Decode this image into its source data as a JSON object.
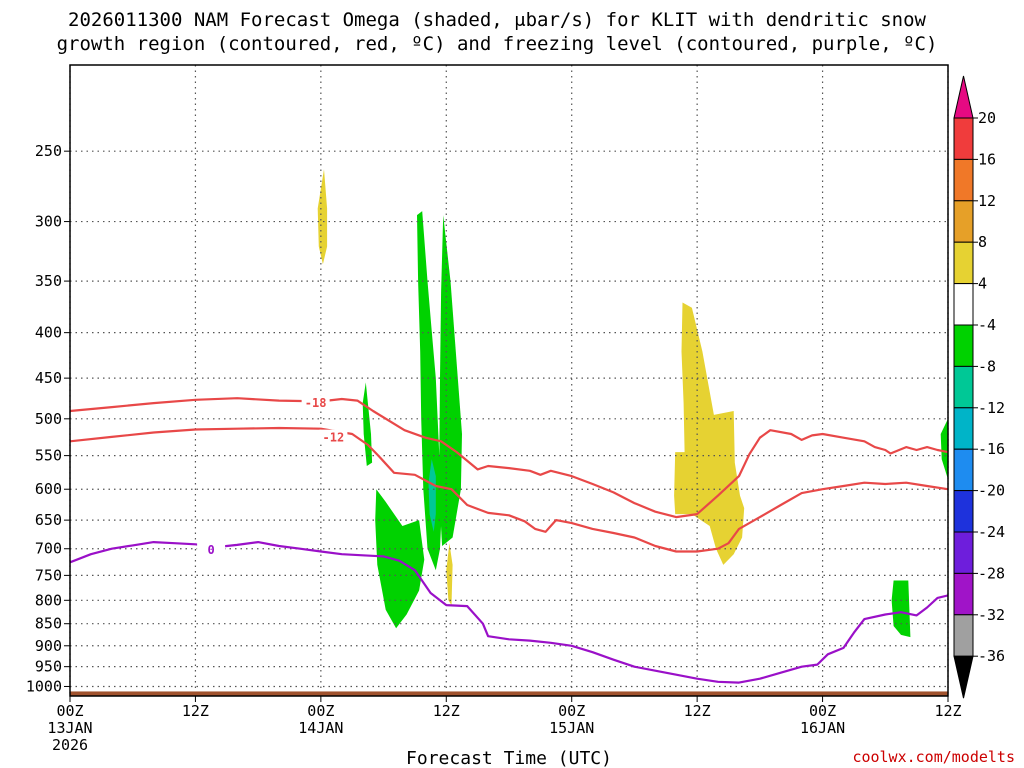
{
  "title": {
    "line1": "2026011300 NAM Forecast Omega (shaded, μbar/s) for KLIT with dendritic snow",
    "line2": "growth region (contoured, red, ºC) and freezing level (contoured, purple, ºC)"
  },
  "credit": "coolwx.com/modelts",
  "chart_data": {
    "type": "contour",
    "title": "2026011300 NAM Forecast Omega (shaded, μbar/s) for KLIT with dendritic snow growth region (contoured, red, ºC) and freezing level (contoured, purple, ºC)",
    "xlabel": "Forecast Time (UTC)",
    "ylabel": "",
    "x_unit": "forecast hour",
    "xlim": [
      0,
      84
    ],
    "ylim": [
      1025,
      200
    ],
    "y_scale": "log-pressure (reversed)",
    "grid": true,
    "x_ticks": [
      {
        "hour": 0,
        "lines": [
          "00Z",
          "13JAN",
          "2026"
        ]
      },
      {
        "hour": 12,
        "lines": [
          "12Z"
        ]
      },
      {
        "hour": 24,
        "lines": [
          "00Z",
          "14JAN"
        ]
      },
      {
        "hour": 36,
        "lines": [
          "12Z"
        ]
      },
      {
        "hour": 48,
        "lines": [
          "00Z",
          "15JAN"
        ]
      },
      {
        "hour": 60,
        "lines": [
          "12Z"
        ]
      },
      {
        "hour": 72,
        "lines": [
          "00Z",
          "16JAN"
        ]
      },
      {
        "hour": 84,
        "lines": [
          "12Z"
        ]
      }
    ],
    "y_ticks": [
      250,
      300,
      350,
      400,
      450,
      500,
      550,
      600,
      650,
      700,
      750,
      800,
      850,
      900,
      950,
      1000
    ],
    "colorbar": {
      "labels": [
        "20",
        "16",
        "12",
        "8",
        "4",
        "-4",
        "-8",
        "-12",
        "-16",
        "-20",
        "-24",
        "-28",
        "-32",
        "-36"
      ],
      "colors": [
        "#e60a82",
        "#f03c3c",
        "#f07828",
        "#e6a028",
        "#e6d232",
        "#ffffff",
        "#00d200",
        "#00c896",
        "#00b4c8",
        "#1e8cf0",
        "#1e32dc",
        "#6e1edc",
        "#a014c8",
        "#a0a0a0",
        "#000000"
      ]
    },
    "surface_color": "#a0522d",
    "surface_top_pressure": 1013,
    "omega_regions": [
      {
        "fill": "#e6d232",
        "points": [
          [
            24.3,
            262
          ],
          [
            24.6,
            290
          ],
          [
            24.6,
            320
          ],
          [
            24.2,
            335
          ],
          [
            23.8,
            320
          ],
          [
            23.7,
            290
          ]
        ]
      },
      {
        "fill": "#00d200",
        "points": [
          [
            33.7,
            292
          ],
          [
            34.2,
            350
          ],
          [
            34.6,
            398
          ],
          [
            35,
            450
          ],
          [
            35.3,
            540
          ],
          [
            35.6,
            620
          ],
          [
            35.4,
            700
          ],
          [
            35,
            740
          ],
          [
            34.2,
            700
          ],
          [
            33.8,
            600
          ],
          [
            33.6,
            500
          ],
          [
            33.5,
            420
          ],
          [
            33.3,
            350
          ],
          [
            33.2,
            295
          ]
        ]
      },
      {
        "fill": "#00d200",
        "points": [
          [
            35.7,
            295
          ],
          [
            36.4,
            350
          ],
          [
            37.1,
            450
          ],
          [
            37.5,
            520
          ],
          [
            37.4,
            600
          ],
          [
            36.6,
            680
          ],
          [
            35.6,
            695
          ],
          [
            35.3,
            600
          ],
          [
            35.4,
            450
          ],
          [
            35.5,
            360
          ]
        ]
      },
      {
        "fill": "#00d200",
        "points": [
          [
            28.3,
            455
          ],
          [
            28.8,
            520
          ],
          [
            28.9,
            560
          ],
          [
            28.4,
            565
          ],
          [
            28.1,
            520
          ],
          [
            28.0,
            480
          ]
        ]
      },
      {
        "fill": "#00d200",
        "points": [
          [
            29.3,
            600
          ],
          [
            30.2,
            620
          ],
          [
            31.8,
            660
          ],
          [
            33.4,
            650
          ],
          [
            33.9,
            720
          ],
          [
            33.4,
            780
          ],
          [
            32.2,
            830
          ],
          [
            31.2,
            860
          ],
          [
            30.2,
            820
          ],
          [
            29.4,
            730
          ],
          [
            29.2,
            650
          ]
        ]
      },
      {
        "fill": "#00c896",
        "points": [
          [
            34.6,
            555
          ],
          [
            35.0,
            580
          ],
          [
            35.0,
            640
          ],
          [
            34.8,
            670
          ],
          [
            34.4,
            640
          ],
          [
            34.3,
            590
          ]
        ]
      },
      {
        "fill": "#e6d232",
        "points": [
          [
            36.3,
            690
          ],
          [
            36.6,
            730
          ],
          [
            36.5,
            810
          ],
          [
            36.2,
            800
          ],
          [
            36.0,
            740
          ]
        ]
      },
      {
        "fill": "#e6d232",
        "points": [
          [
            58.6,
            370
          ],
          [
            59.5,
            375
          ],
          [
            60.5,
            420
          ],
          [
            61.6,
            495
          ],
          [
            63.5,
            490
          ],
          [
            63.6,
            560
          ],
          [
            64.1,
            610
          ],
          [
            64.5,
            630
          ],
          [
            64.3,
            680
          ],
          [
            63.5,
            710
          ],
          [
            62.5,
            730
          ],
          [
            61.8,
            700
          ],
          [
            61.2,
            660
          ],
          [
            59.5,
            640
          ],
          [
            57.9,
            640
          ],
          [
            57.8,
            610
          ],
          [
            57.9,
            545
          ],
          [
            58.8,
            545
          ],
          [
            58.7,
            480
          ],
          [
            58.5,
            420
          ]
        ]
      },
      {
        "fill": "#00d200",
        "points": [
          [
            84,
            500
          ],
          [
            84,
            585
          ],
          [
            83.4,
            555
          ],
          [
            83.3,
            520
          ]
        ]
      },
      {
        "fill": "#00d200",
        "points": [
          [
            78.8,
            760
          ],
          [
            80.2,
            760
          ],
          [
            80.4,
            880
          ],
          [
            79.5,
            875
          ],
          [
            78.8,
            855
          ],
          [
            78.6,
            800
          ]
        ]
      }
    ],
    "contours": [
      {
        "label": "-18",
        "color": "#e84848",
        "label_at": [
          23.5,
          480
        ],
        "points": [
          [
            0,
            490
          ],
          [
            4,
            485
          ],
          [
            8,
            480
          ],
          [
            12,
            476
          ],
          [
            16,
            474
          ],
          [
            20,
            477
          ],
          [
            24,
            478
          ],
          [
            26,
            475
          ],
          [
            27.5,
            477
          ],
          [
            29,
            490
          ],
          [
            32,
            515
          ],
          [
            34,
            525
          ],
          [
            35.5,
            530
          ],
          [
            37,
            545
          ],
          [
            39,
            570
          ],
          [
            40,
            565
          ],
          [
            42,
            568
          ],
          [
            44,
            572
          ],
          [
            45,
            578
          ],
          [
            46,
            572
          ],
          [
            48,
            580
          ],
          [
            50,
            592
          ],
          [
            52,
            605
          ],
          [
            54,
            622
          ],
          [
            56,
            636
          ],
          [
            58,
            645
          ],
          [
            60,
            640
          ],
          [
            62,
            610
          ],
          [
            64,
            580
          ],
          [
            65,
            548
          ],
          [
            66,
            525
          ],
          [
            67,
            515
          ],
          [
            69,
            520
          ],
          [
            70,
            528
          ],
          [
            71,
            522
          ],
          [
            72,
            520
          ],
          [
            74,
            525
          ],
          [
            76,
            530
          ],
          [
            77,
            538
          ],
          [
            78,
            542
          ],
          [
            78.5,
            547
          ],
          [
            80,
            538
          ],
          [
            81,
            542
          ],
          [
            82,
            538
          ],
          [
            83,
            542
          ],
          [
            84,
            545
          ]
        ]
      },
      {
        "label": "-12",
        "color": "#e84848",
        "label_at": [
          25.2,
          525
        ],
        "points": [
          [
            0,
            530
          ],
          [
            4,
            524
          ],
          [
            8,
            518
          ],
          [
            12,
            514
          ],
          [
            16,
            513
          ],
          [
            20,
            512
          ],
          [
            24,
            513
          ],
          [
            27,
            520
          ],
          [
            28.5,
            535
          ],
          [
            29.5,
            550
          ],
          [
            31,
            575
          ],
          [
            33,
            578
          ],
          [
            35,
            595
          ],
          [
            36.5,
            600
          ],
          [
            38,
            625
          ],
          [
            40,
            638
          ],
          [
            42,
            642
          ],
          [
            43.5,
            652
          ],
          [
            44.5,
            665
          ],
          [
            45.5,
            670
          ],
          [
            46.5,
            650
          ],
          [
            48,
            655
          ],
          [
            50,
            665
          ],
          [
            52,
            672
          ],
          [
            54,
            680
          ],
          [
            56,
            695
          ],
          [
            58,
            705
          ],
          [
            60,
            705
          ],
          [
            62,
            700
          ],
          [
            63,
            690
          ],
          [
            64,
            665
          ],
          [
            66,
            645
          ],
          [
            68,
            625
          ],
          [
            70,
            606
          ],
          [
            72,
            600
          ],
          [
            74,
            595
          ],
          [
            76,
            590
          ],
          [
            78,
            592
          ],
          [
            80,
            590
          ],
          [
            82,
            595
          ],
          [
            84,
            600
          ]
        ]
      },
      {
        "label": "0",
        "color": "#9a10c8",
        "label_at": [
          13.5,
          702
        ],
        "points": [
          [
            0,
            725
          ],
          [
            2,
            710
          ],
          [
            4,
            700
          ],
          [
            6,
            694
          ],
          [
            8,
            688
          ],
          [
            10,
            690
          ],
          [
            12,
            692
          ],
          [
            14,
            697
          ],
          [
            16,
            693
          ],
          [
            18,
            688
          ],
          [
            20,
            695
          ],
          [
            22,
            700
          ],
          [
            24,
            705
          ],
          [
            26,
            710
          ],
          [
            28,
            712
          ],
          [
            30,
            714
          ],
          [
            31.5,
            722
          ],
          [
            33,
            740
          ],
          [
            34.5,
            785
          ],
          [
            36,
            810
          ],
          [
            38,
            812
          ],
          [
            39.5,
            850
          ],
          [
            40,
            878
          ],
          [
            42,
            885
          ],
          [
            44,
            888
          ],
          [
            46,
            893
          ],
          [
            48,
            900
          ],
          [
            50,
            915
          ],
          [
            52,
            933
          ],
          [
            54,
            950
          ],
          [
            56,
            960
          ],
          [
            58,
            970
          ],
          [
            60,
            980
          ],
          [
            62,
            988
          ],
          [
            64,
            990
          ],
          [
            66,
            980
          ],
          [
            68,
            965
          ],
          [
            70,
            950
          ],
          [
            71.5,
            945
          ],
          [
            72.5,
            920
          ],
          [
            74,
            905
          ],
          [
            75,
            870
          ],
          [
            76,
            840
          ],
          [
            78,
            830
          ],
          [
            79.5,
            825
          ],
          [
            81,
            832
          ],
          [
            82,
            815
          ],
          [
            83,
            795
          ],
          [
            84,
            790
          ]
        ]
      }
    ]
  }
}
